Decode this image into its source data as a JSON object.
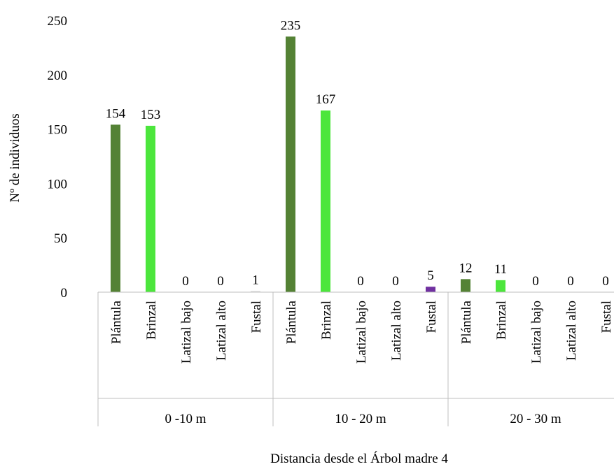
{
  "chart_data": {
    "type": "bar",
    "title": "",
    "ylabel": "Nº de individuos",
    "xlabel": "Distancia desde el Árbol madre 4",
    "ylim": [
      0,
      250
    ],
    "yticks": [
      0,
      50,
      100,
      150,
      200,
      250
    ],
    "grid": false,
    "legend": "none",
    "groups": [
      {
        "name": "0 -10 m",
        "categories": [
          "Plántula",
          "Brinzal",
          "Latizal bajo",
          "Latizal alto",
          "Fustal"
        ],
        "values": [
          154,
          153,
          0,
          0,
          1
        ]
      },
      {
        "name": "10 - 20 m",
        "categories": [
          "Plántula",
          "Brinzal",
          "Latizal bajo",
          "Latizal alto",
          "Fustal"
        ],
        "values": [
          235,
          167,
          0,
          0,
          5
        ]
      },
      {
        "name": "20 - 30 m",
        "categories": [
          "Plántula",
          "Brinzal",
          "Latizal bajo",
          "Latizal alto",
          "Fustal"
        ],
        "values": [
          12,
          11,
          0,
          0,
          0
        ]
      }
    ],
    "category_colors": {
      "Plántula": "#548235",
      "Brinzal": "#4CE63C",
      "Latizal bajo": "#A9A9A9",
      "Latizal alto": "#A9A9A9",
      "Fustal": "#7030A0"
    },
    "fustal_colors_by_group": [
      "#D9D9D9",
      "#7030A0",
      "#7030A0"
    ],
    "axis_color": "#BFBFBF"
  }
}
